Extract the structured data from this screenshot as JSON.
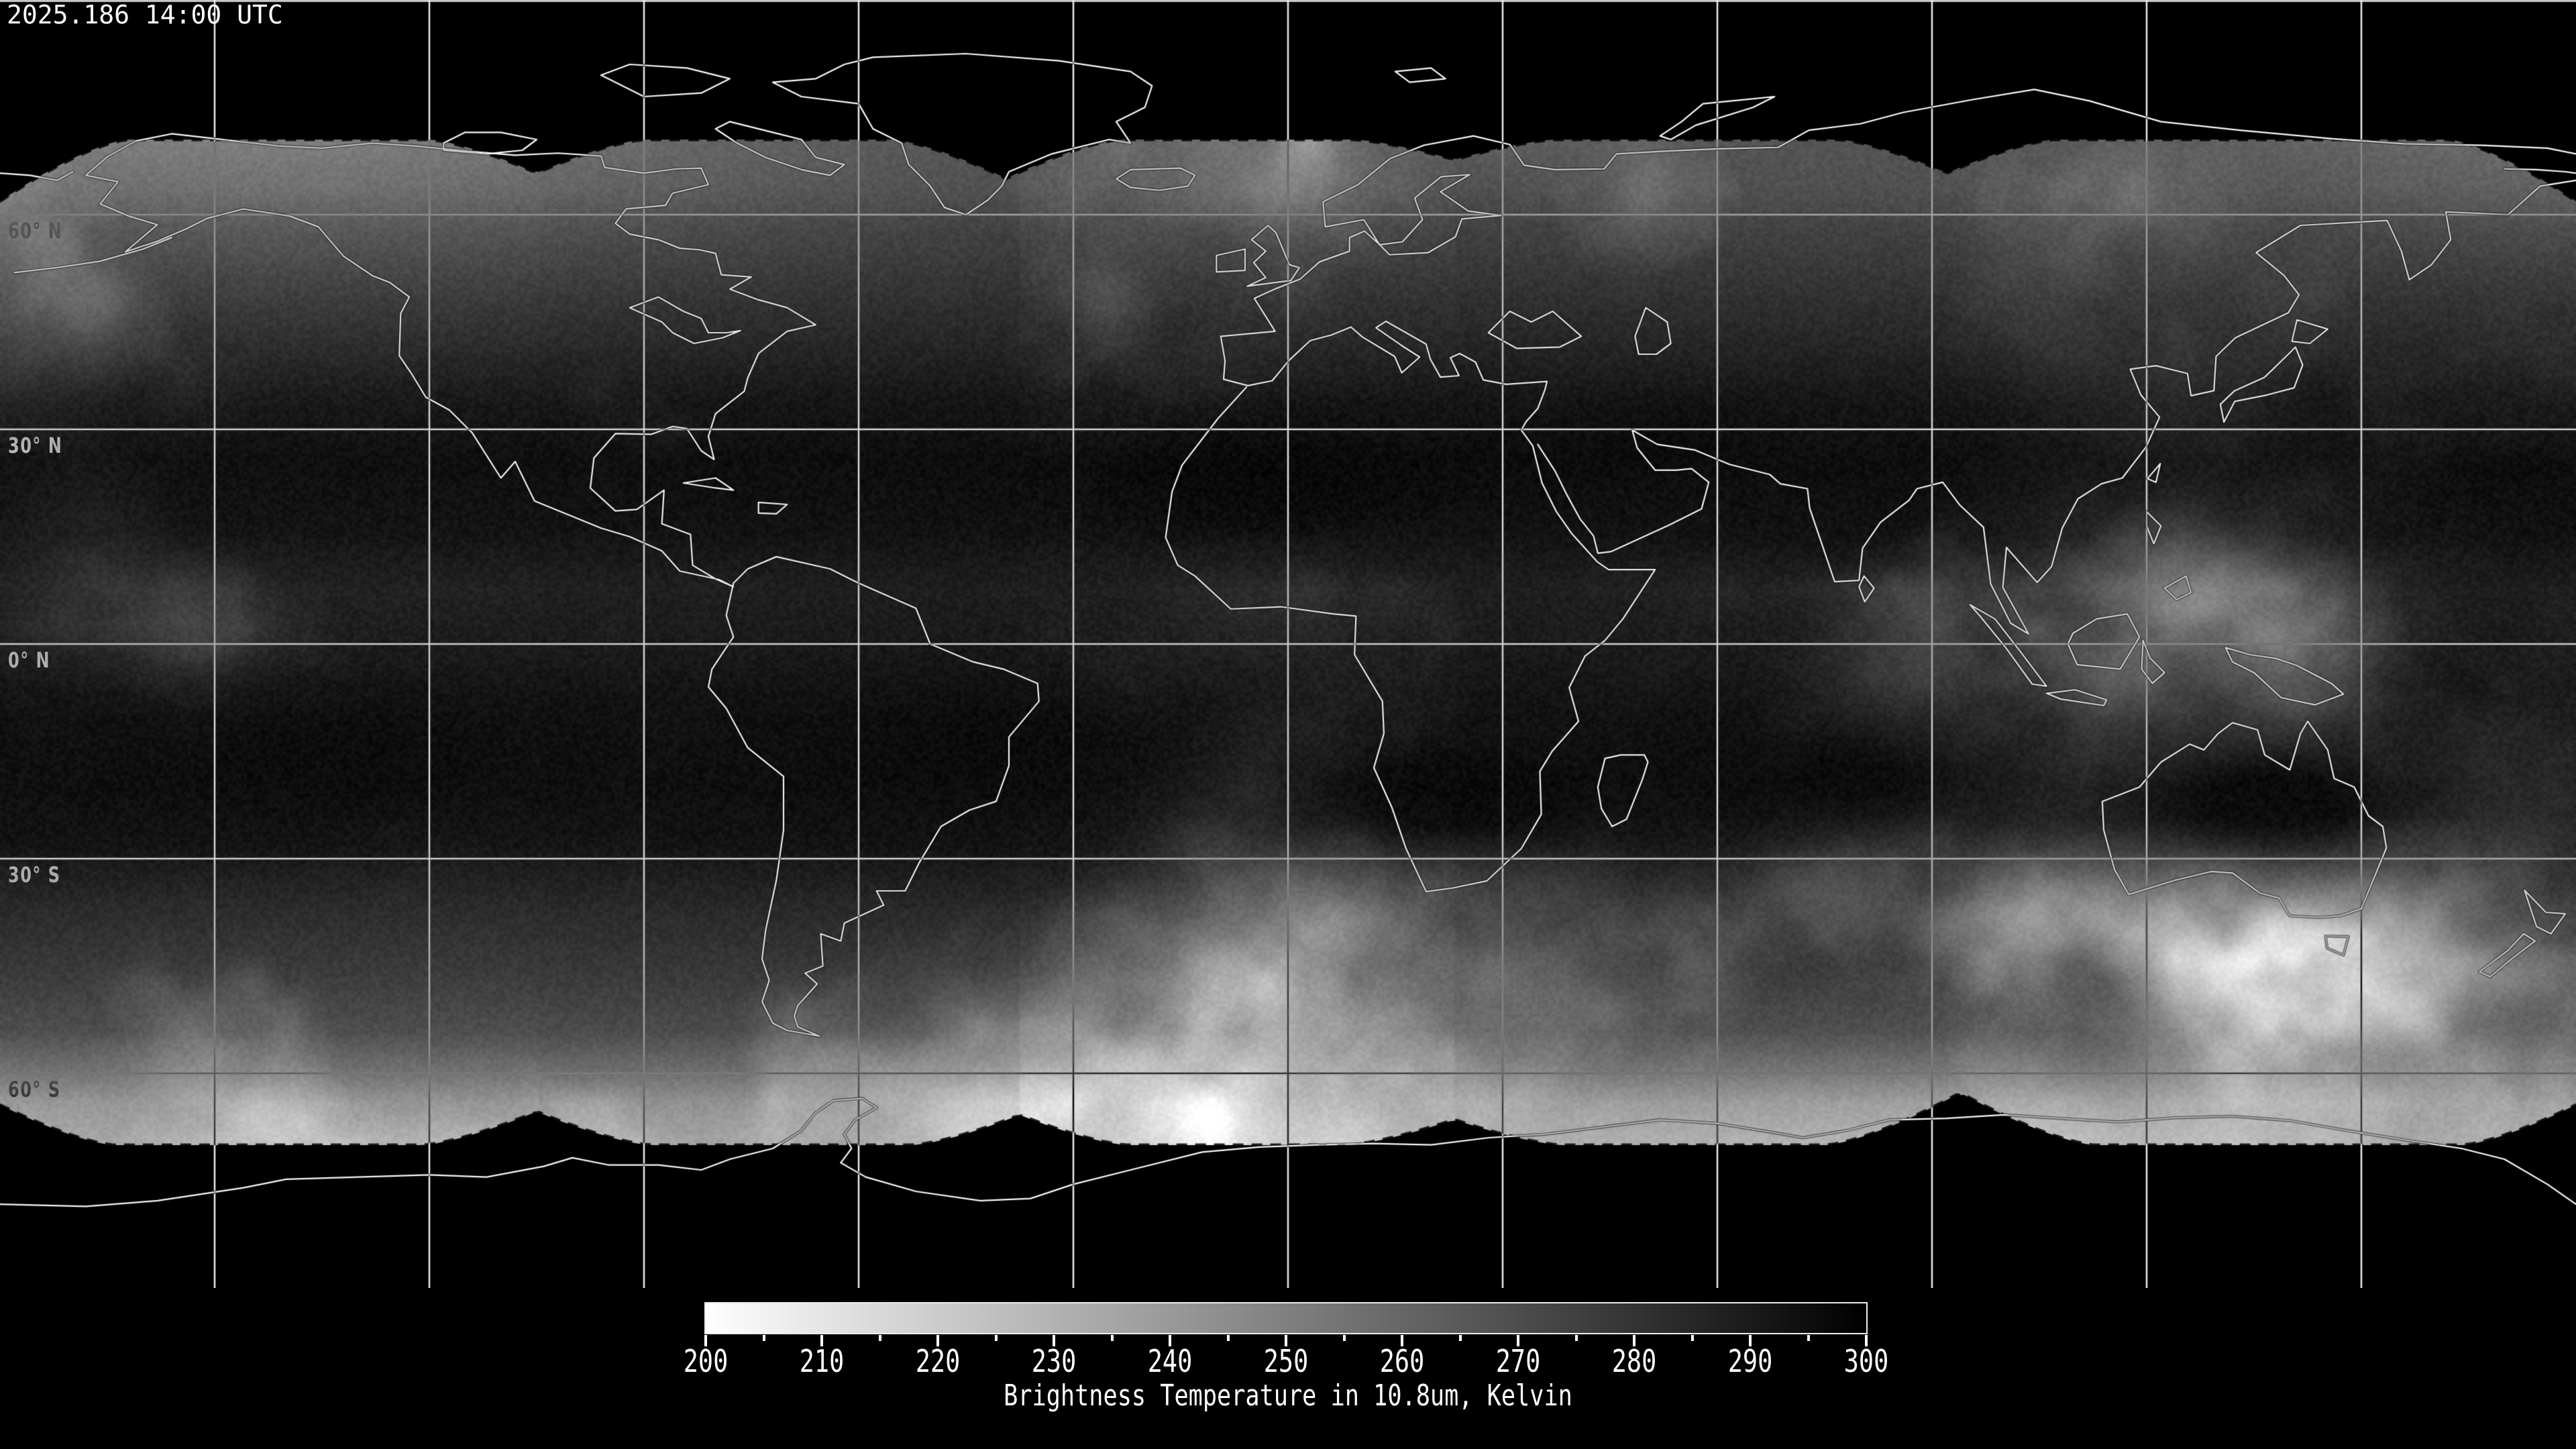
{
  "header": {
    "timestamp": "2025.186 14:00 UTC"
  },
  "map": {
    "projection": "equirectangular",
    "latitude_labels": [
      {
        "lat": 60,
        "label": "60° N"
      },
      {
        "lat": 30,
        "label": "30° N"
      },
      {
        "lat": 0,
        "label": "0° N"
      },
      {
        "lat": -30,
        "label": "30° S"
      },
      {
        "lat": -60,
        "label": "60° S"
      }
    ],
    "graticule": {
      "lon_interval_deg": 30,
      "lat_interval_deg": 30
    }
  },
  "colorbar": {
    "caption": "Brightness Temperature in 10.8um, Kelvin",
    "min": 200,
    "max": 300,
    "major_ticks": [
      200,
      210,
      220,
      230,
      240,
      250,
      260,
      270,
      280,
      290,
      300
    ],
    "minor_tick_step": 5,
    "start_color": "#ffffff",
    "end_color": "#000000"
  }
}
